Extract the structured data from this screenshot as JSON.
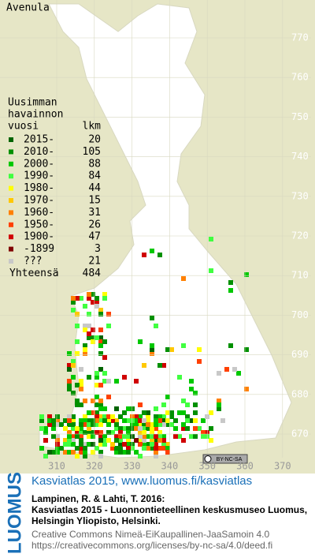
{
  "title": "Avenula",
  "legend": {
    "header": [
      "Uusimman",
      "havainnon",
      "vuosi"
    ],
    "count_header": "lkm",
    "rows": [
      {
        "label": "2015-",
        "count": 20,
        "color": "#006400"
      },
      {
        "label": "2010-",
        "count": 105,
        "color": "#009000"
      },
      {
        "label": "2000-",
        "count": 88,
        "color": "#00c800"
      },
      {
        "label": "1990-",
        "count": 84,
        "color": "#40ff40"
      },
      {
        "label": "1980-",
        "count": 44,
        "color": "#ffff00"
      },
      {
        "label": "1970-",
        "count": 15,
        "color": "#ffc800"
      },
      {
        "label": "1960-",
        "count": 31,
        "color": "#ff8000"
      },
      {
        "label": "1950-",
        "count": 26,
        "color": "#ff4000"
      },
      {
        "label": "1900-",
        "count": 47,
        "color": "#d00000"
      },
      {
        "label": "-1899",
        "count": 3,
        "color": "#800000"
      },
      {
        "label": "???",
        "count": 21,
        "color": "#c8c8c8"
      }
    ],
    "total_label": "Yhteensä",
    "total": 484
  },
  "axes": {
    "right": [
      770,
      760,
      750,
      740,
      730,
      720,
      710,
      700,
      690,
      680,
      670
    ],
    "bottom": [
      310,
      320,
      330,
      340,
      350,
      360,
      370
    ]
  },
  "cc_badge": "BY-NC-SA",
  "footer": {
    "logo": "LUOMUS",
    "link": "Kasviatlas 2015, www.luomus.fi/kasviatlas",
    "citation": [
      "Lampinen, R. & Lahti, T. 2016:",
      "Kasviatlas 2015 - Luonnontieteellinen keskusmuseo Luomus,",
      "Helsingin Yliopisto, Helsinki."
    ],
    "license": [
      "Creative Commons Nimeä-EiKaupallinen-JaaSamoin 4.0",
      "https://creativecommons.org/licenses/by-nc-sa/4.0/deed.fi"
    ]
  }
}
